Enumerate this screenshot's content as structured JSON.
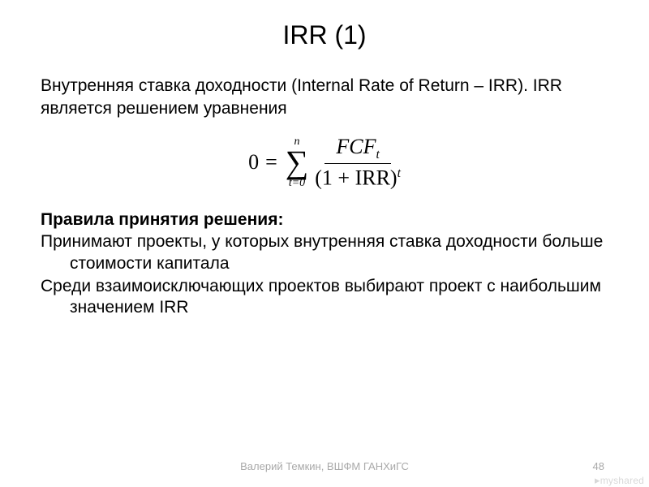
{
  "title": "IRR (1)",
  "intro": "Внутренняя ставка доходности (Internal Rate of Return – IRR). IRR является решением уравнения",
  "formula": {
    "lhs": "0",
    "eq": "=",
    "sum_upper": "n",
    "sum_symbol": "∑",
    "sum_lower": "t=0",
    "numerator_base": "FCF",
    "numerator_sub": "t",
    "denominator_inner": "(1 + IRR)",
    "denominator_sup": "t"
  },
  "rules_heading": "Правила принятия решения:",
  "rule1": "Принимают проекты, у которых внутренняя ставка доходности больше стоимости капитала",
  "rule2": "Среди взаимоисключающих проектов выбирают проект с наибольшим значением IRR",
  "footer": {
    "author": "Валерий Темкин, ВШФМ ГАНХиГС",
    "page": "48"
  },
  "watermark": "myshared"
}
